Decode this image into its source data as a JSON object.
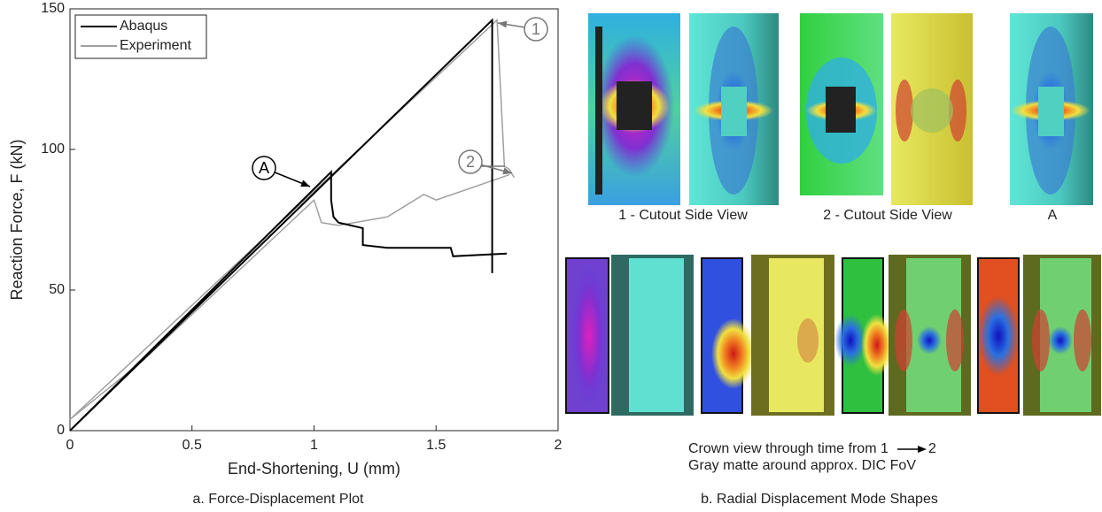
{
  "chart_data": {
    "type": "line",
    "xlabel": "End-Shortening, U (mm)",
    "ylabel": "Reaction Force, F (kN)",
    "xlim": [
      0,
      2
    ],
    "ylim": [
      0,
      150
    ],
    "xticks": [
      0,
      0.5,
      1,
      1.5,
      2
    ],
    "yticks": [
      0,
      50,
      100,
      150
    ],
    "legend": "upper left",
    "series": [
      {
        "name": "Abaqus",
        "color": "#000000",
        "x": [
          0,
          1.07,
          1.07,
          1.08,
          1.1,
          1.2,
          1.2,
          1.3,
          1.56,
          1.57,
          1.79,
          null,
          0,
          1.73,
          1.73
        ],
        "values": [
          0,
          92,
          82,
          76,
          74,
          72,
          66,
          65,
          65,
          62,
          63,
          null,
          0,
          146,
          56
        ]
      },
      {
        "name": "Experiment",
        "color": "#a0a0a0",
        "x": [
          0,
          0.3,
          1.0,
          1.03,
          1.1,
          1.3,
          1.45,
          1.5,
          1.7,
          1.8,
          null,
          0,
          1.75,
          1.78,
          1.8,
          1.82
        ],
        "values": [
          4,
          25,
          82,
          74,
          73,
          76,
          84,
          82,
          88,
          91,
          null,
          4,
          146,
          94,
          93,
          90
        ]
      }
    ],
    "annotations": [
      "1",
      "2",
      "A"
    ],
    "caption": "a. Force-Displacement Plot"
  },
  "panel_b": {
    "top_labels": [
      "1 - Cutout Side View",
      "2 - Cutout Side View",
      "A"
    ],
    "note_line1": "Crown view through time from 1",
    "note_line1_end": "2",
    "note_line2": "Gray matte around approx. DIC FoV",
    "caption": "b. Radial Displacement Mode Shapes"
  }
}
